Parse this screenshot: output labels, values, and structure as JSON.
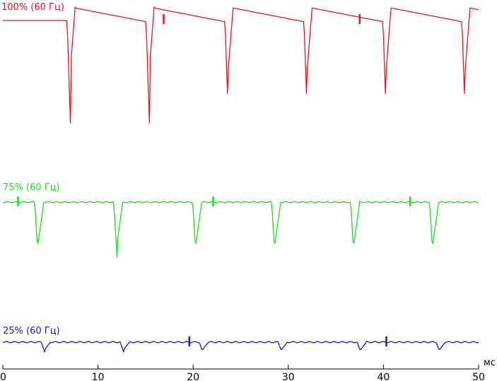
{
  "chart_data": {
    "type": "line",
    "x_unit": "мс",
    "xlim": [
      0,
      50
    ],
    "x_ticks": [
      0,
      10,
      20,
      30,
      40,
      50
    ],
    "tick_labels": [
      "0",
      "10",
      "20",
      "30",
      "40",
      "50"
    ],
    "grid": false,
    "legend": "none",
    "series": [
      {
        "name": "100% (60 Гц)",
        "color": "#e8141c",
        "level": "high",
        "shape": "sawtooth",
        "dips_ms": [
          7.1,
          15.4,
          23.7,
          32.0,
          40.3,
          48.6
        ],
        "dip_depth": 1.0,
        "spikes_ms": [
          16.9,
          37.5
        ]
      },
      {
        "name": "75% (60 Гц)",
        "color": "#22dd22",
        "level": "mid",
        "shape": "flat",
        "dips_ms": [
          3.7,
          12.0,
          20.3,
          28.6,
          36.9,
          45.2
        ],
        "dip_depth": 1.0,
        "spikes_ms": [
          1.6,
          22.1,
          42.8
        ]
      },
      {
        "name": "25% (60 Гц)",
        "color": "#1a1acc",
        "level": "low",
        "shape": "flat",
        "dips_ms": [
          4.4,
          12.7,
          21.0,
          29.3,
          37.6,
          45.9
        ],
        "dip_depth": 1.0,
        "spikes_ms": [
          19.6,
          40.3
        ]
      }
    ]
  }
}
